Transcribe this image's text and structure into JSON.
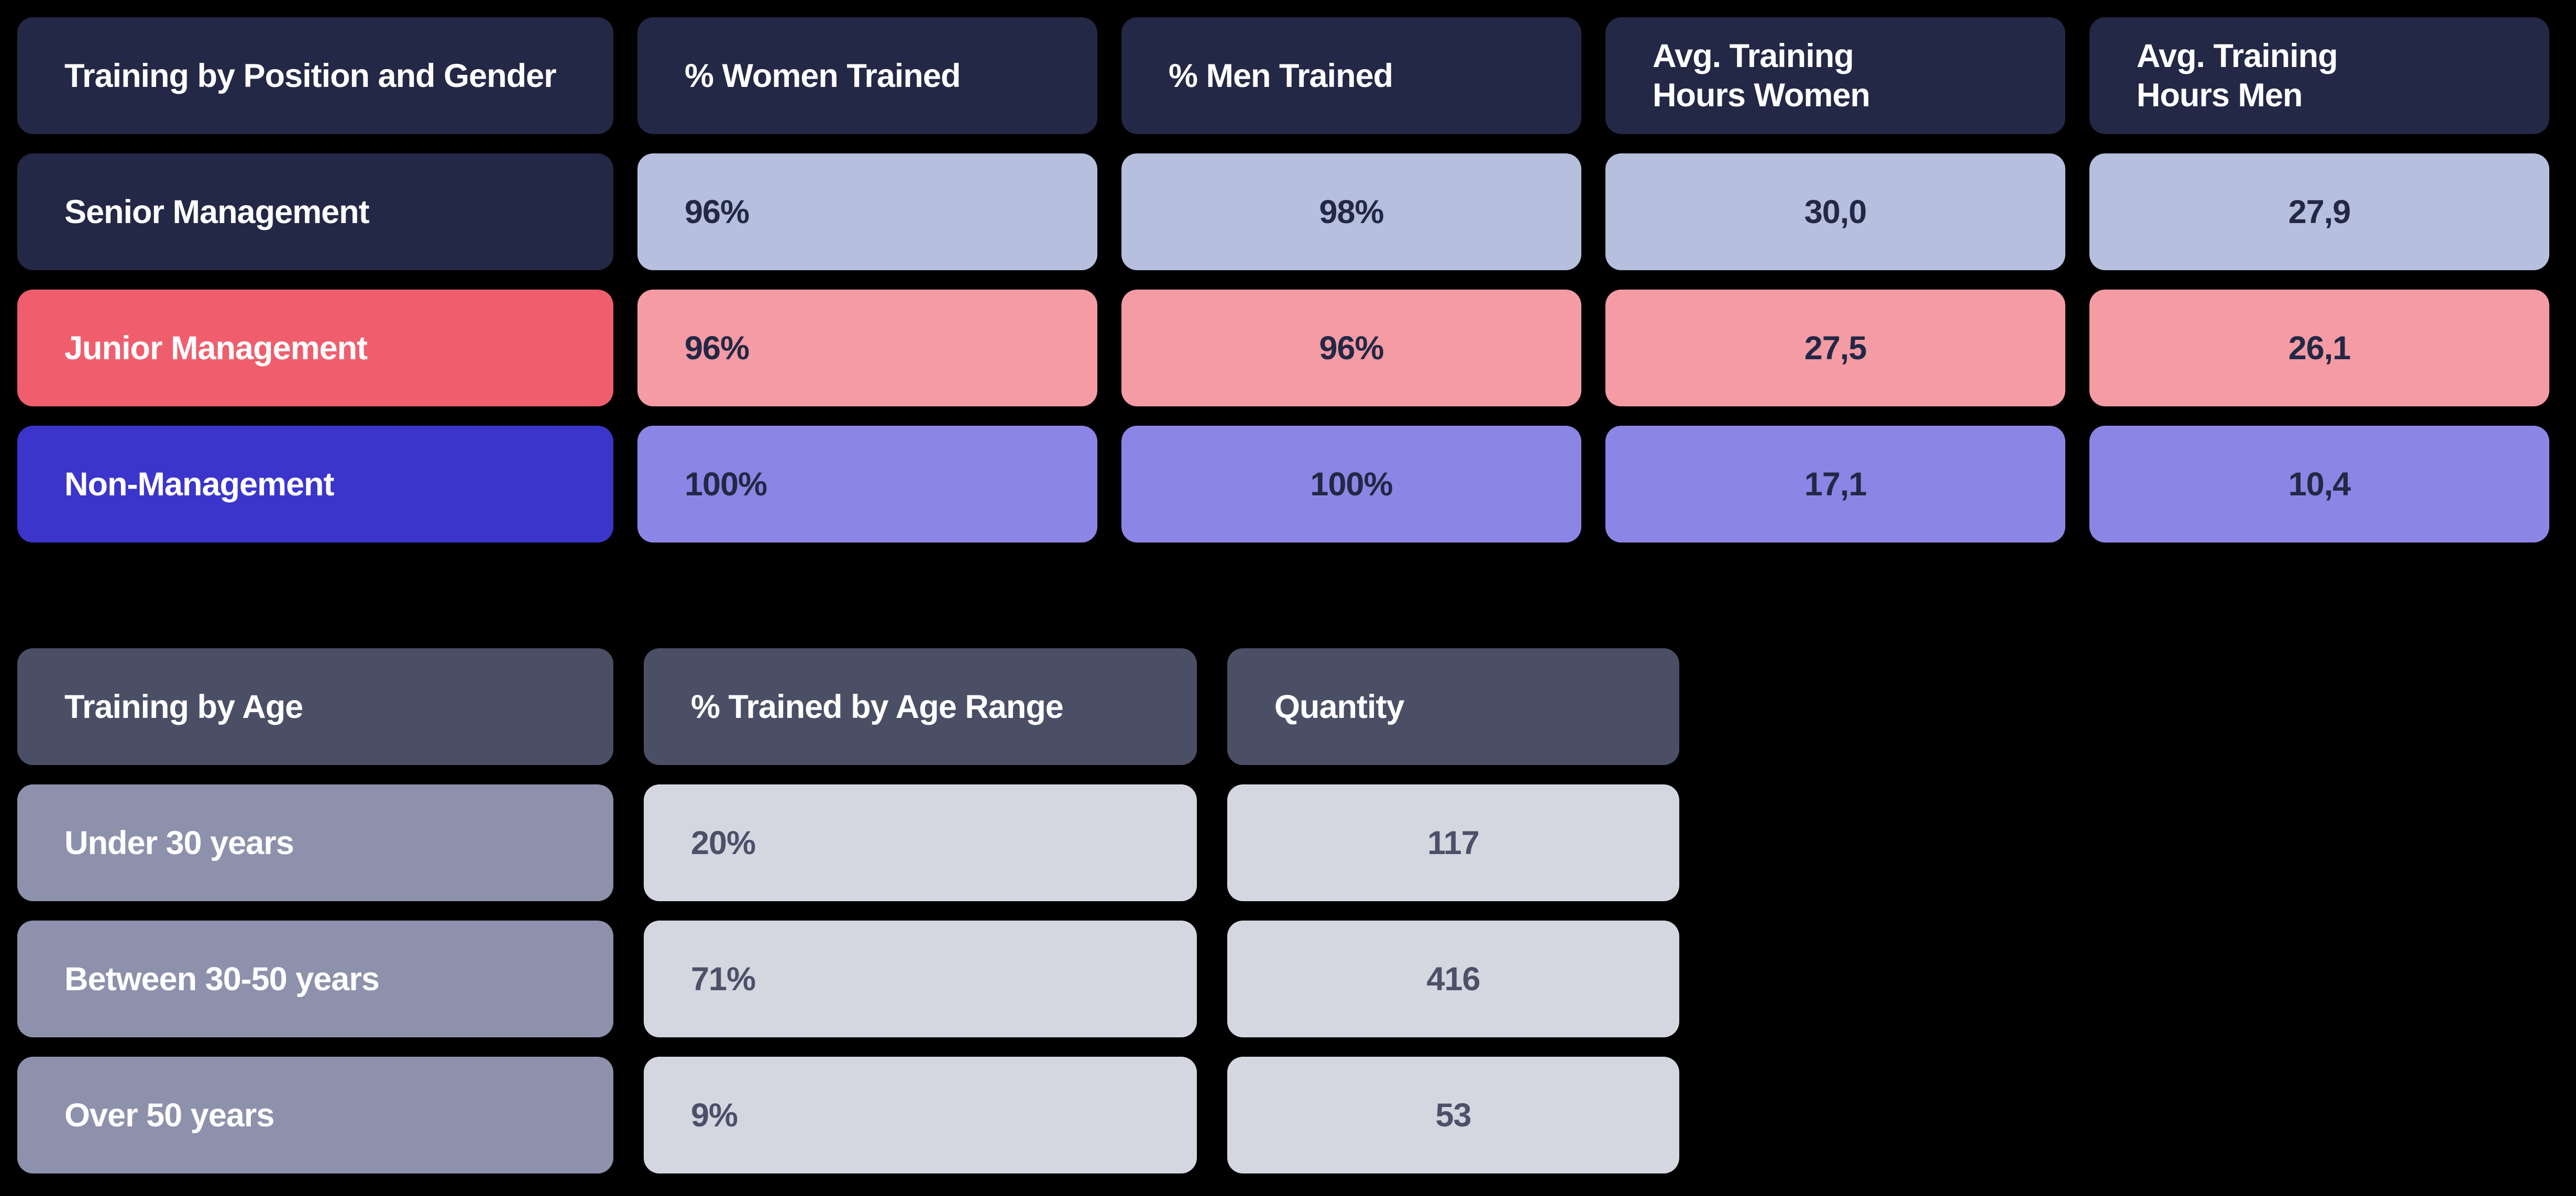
{
  "colors": {
    "background": "#000000",
    "navy": "#222845",
    "periwinkle": "#b6bfdd",
    "coral": "#f05e6d",
    "pink": "#f49ba4",
    "indigo": "#3b35cc",
    "purple": "#8b86e5",
    "slate": "#4b4f66",
    "gray": "#8d91ac",
    "lightgray": "#d4d7e0",
    "slate-text": "#4c5068"
  },
  "chart_data": [
    {
      "type": "table",
      "title": "Training by Position and Gender",
      "columns": [
        "Training by Position and Gender",
        "% Women Trained",
        "% Men Trained",
        "Avg. Training\nHours Women",
        "Avg. Training\nHours Men"
      ],
      "rows": [
        [
          "Senior Management",
          "96%",
          "98%",
          "30,0",
          "27,9"
        ],
        [
          "Junior Management",
          "96%",
          "96%",
          "27,5",
          "26,1"
        ],
        [
          "Non-Management",
          "100%",
          "100%",
          "17,1",
          "10,4"
        ]
      ],
      "row_themes": [
        "navy",
        "coral",
        "indigo"
      ],
      "legend_position": "none",
      "grid": false
    },
    {
      "type": "table",
      "title": "Training by Age",
      "columns": [
        "Training by Age",
        "% Trained by Age Range",
        "Quantity"
      ],
      "rows": [
        [
          "Under 30 years",
          "20%",
          "117"
        ],
        [
          "Between 30-50 years",
          "71%",
          "416"
        ],
        [
          "Over 50 years",
          "9%",
          "53"
        ]
      ],
      "row_themes": [
        "gray",
        "gray",
        "gray"
      ],
      "legend_position": "none",
      "grid": false
    }
  ]
}
